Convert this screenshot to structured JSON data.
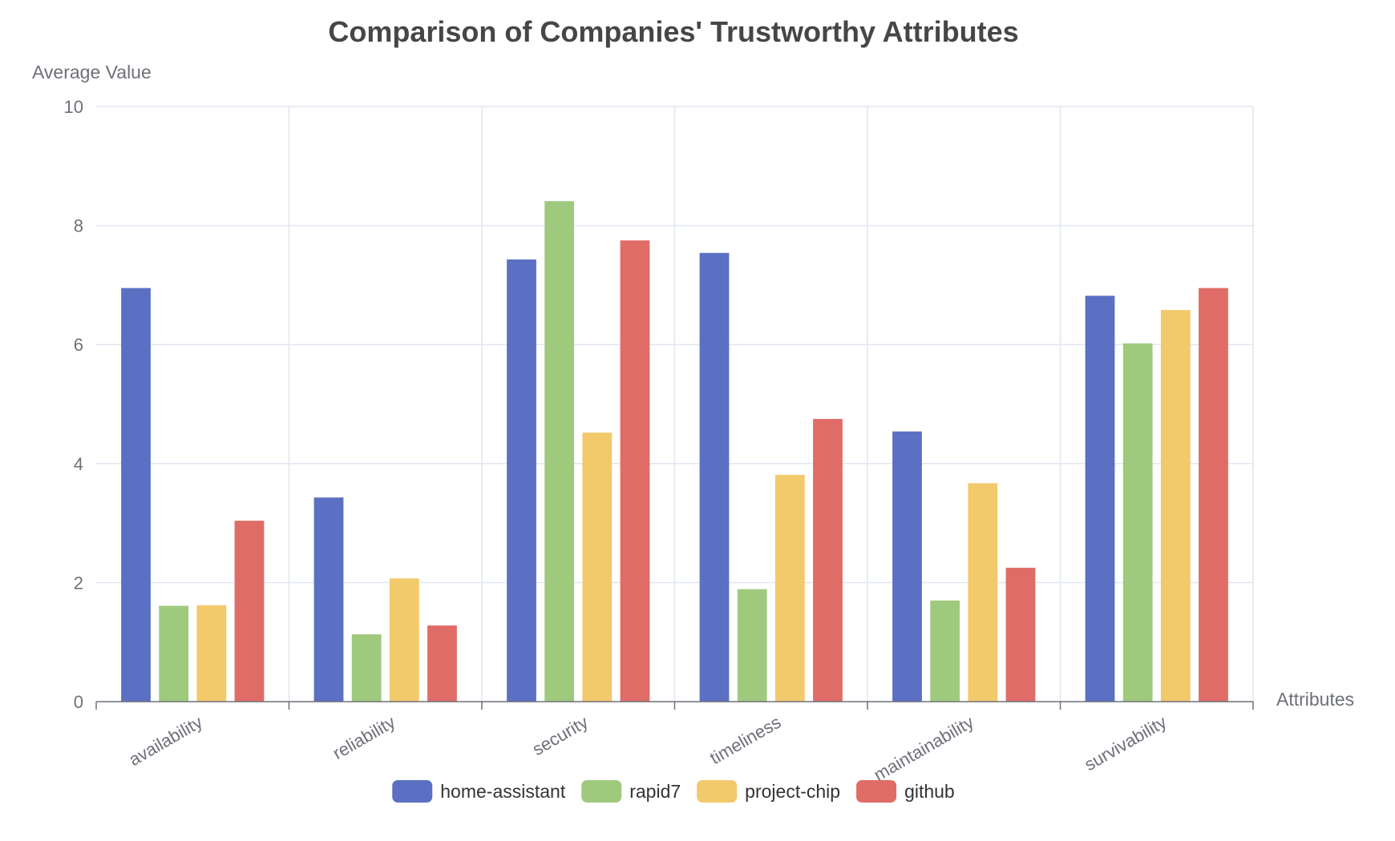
{
  "chart_data": {
    "type": "bar",
    "title": "Comparison of Companies' Trustworthy Attributes",
    "xlabel": "Attributes",
    "ylabel": "Average Value",
    "categories": [
      "availability",
      "reliability",
      "security",
      "timeliness",
      "maintainability",
      "survivability"
    ],
    "series": [
      {
        "name": "home-assistant",
        "color": "#5b70c2",
        "values": [
          6.95,
          3.43,
          7.43,
          7.54,
          4.54,
          6.82
        ]
      },
      {
        "name": "rapid7",
        "color": "#9fca7e",
        "values": [
          1.61,
          1.13,
          8.41,
          1.89,
          1.7,
          6.02
        ]
      },
      {
        "name": "project-chip",
        "color": "#f2c96b",
        "values": [
          1.62,
          2.07,
          4.52,
          3.81,
          3.67,
          6.58
        ]
      },
      {
        "name": "github",
        "color": "#e06c68",
        "values": [
          3.04,
          1.28,
          7.75,
          4.75,
          2.25,
          6.95
        ]
      }
    ],
    "ylim": [
      0,
      10
    ],
    "yticks": [
      0,
      2,
      4,
      6,
      8,
      10
    ],
    "grid": true,
    "legend_position": "bottom"
  }
}
